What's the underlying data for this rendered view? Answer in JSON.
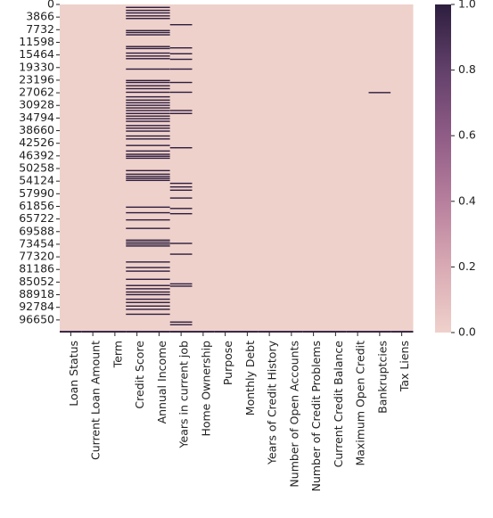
{
  "chart_data": {
    "type": "heatmap",
    "title": "",
    "xlabel": "",
    "ylabel": "",
    "columns": [
      "Loan Status",
      "Current Loan Amount",
      "Term",
      "Credit Score",
      "Annual Income",
      "Years in current job",
      "Home Ownership",
      "Purpose",
      "Monthly Debt",
      "Years of Credit History",
      "Number of Open Accounts",
      "Number of Credit Problems",
      "Current Credit Balance",
      "Maximum Open Credit",
      "Bankruptcies",
      "Tax Liens"
    ],
    "row_count": 100514,
    "y_ticks": [
      0,
      3866,
      7732,
      11598,
      15464,
      19330,
      23196,
      27062,
      30928,
      34794,
      38660,
      42526,
      46392,
      50258,
      54124,
      57990,
      61856,
      65722,
      69588,
      73454,
      77320,
      81186,
      85052,
      88918,
      92784,
      96650
    ],
    "colorbar": {
      "min": 0.0,
      "max": 1.0,
      "ticks": [
        "0.0",
        "0.2",
        "0.4",
        "0.6",
        "0.8",
        "1.0"
      ]
    },
    "colors": {
      "low": "#efd1cb",
      "high": "#2d1e3e"
    },
    "bottom_missing_rows": [
      100000,
      100514
    ],
    "missing": {
      "Credit Score": [
        900,
        1800,
        2600,
        3500,
        4300,
        8000,
        8600,
        9300,
        12900,
        13500,
        14900,
        15800,
        16600,
        19800,
        23300,
        23900,
        24900,
        25800,
        26900,
        28300,
        29300,
        30100,
        30900,
        31700,
        32500,
        33400,
        34200,
        35000,
        35800,
        37100,
        37900,
        38800,
        40300,
        41200,
        43200,
        44900,
        45900,
        46500,
        47100,
        50900,
        52000,
        52700,
        53300,
        53900,
        62100,
        63800,
        66000,
        68600,
        72200,
        72800,
        73400,
        74000,
        78900,
        80600,
        81700,
        84200,
        86100,
        87100,
        88100,
        88900,
        90300,
        91300,
        92400,
        93400,
        94900
      ],
      "Annual Income": [
        900,
        1800,
        2600,
        3500,
        4300,
        8000,
        8600,
        9300,
        12900,
        13500,
        14900,
        15800,
        16600,
        19800,
        23300,
        23900,
        24900,
        25800,
        26900,
        28300,
        29300,
        30100,
        30900,
        31700,
        32500,
        33400,
        34200,
        35000,
        35800,
        37100,
        37900,
        38800,
        40300,
        41200,
        43200,
        44900,
        45900,
        46500,
        47100,
        50900,
        52000,
        52700,
        53300,
        53900,
        62100,
        63800,
        66000,
        68600,
        72200,
        72800,
        73400,
        74000,
        78900,
        80600,
        81700,
        84200,
        86100,
        87100,
        88100,
        88900,
        90300,
        91300,
        92400,
        93400,
        94900
      ],
      "Years in current job": [
        6200,
        13300,
        15100,
        16800,
        19800,
        23900,
        26900,
        32500,
        33400,
        43900,
        54800,
        55900,
        56900,
        59300,
        62500,
        64100,
        73200,
        76500,
        85600,
        86300,
        97300,
        98100
      ],
      "Bankruptcies": [
        27000
      ]
    }
  }
}
